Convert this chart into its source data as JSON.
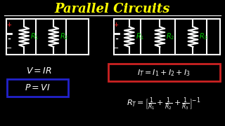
{
  "title": "Parallel Circuits",
  "title_color": "#FFFF00",
  "bg_color": "#000000",
  "white": "#FFFFFF",
  "green": "#00CC00",
  "red": "#CC2222",
  "blue": "#2222CC",
  "fig_width": 3.2,
  "fig_height": 1.8,
  "dpi": 100
}
